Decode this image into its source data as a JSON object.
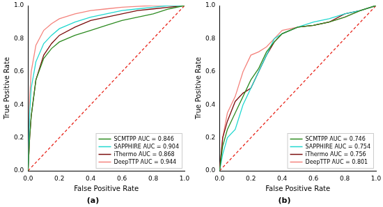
{
  "chart_data": [
    {
      "type": "line",
      "title": "(a)",
      "x_label": "False Positive Rate",
      "y_label": "True Positive Rate",
      "x": [
        0,
        0.01,
        0.02,
        0.05,
        0.1,
        0.15,
        0.2,
        0.3,
        0.4,
        0.5,
        0.6,
        0.7,
        0.8,
        0.9,
        1
      ],
      "series": [
        {
          "name": "SCMTPP AUC = 0.846",
          "color": "#2e8b22",
          "values": [
            0,
            0.2,
            0.33,
            0.55,
            0.68,
            0.74,
            0.78,
            0.82,
            0.85,
            0.88,
            0.91,
            0.93,
            0.95,
            0.98,
            1
          ]
        },
        {
          "name": "SAPPHIRE AUC = 0.904",
          "color": "#22d8d0",
          "values": [
            0,
            0.35,
            0.5,
            0.66,
            0.77,
            0.82,
            0.86,
            0.9,
            0.93,
            0.95,
            0.97,
            0.98,
            0.99,
            1,
            1
          ]
        },
        {
          "name": "iThermo AUC = 0.868",
          "color": "#7a0c0c",
          "values": [
            0,
            0.2,
            0.33,
            0.55,
            0.7,
            0.77,
            0.82,
            0.87,
            0.91,
            0.93,
            0.95,
            0.97,
            0.98,
            0.99,
            1
          ]
        },
        {
          "name": "DeepTTP AUC = 0.944",
          "color": "#f4837d",
          "values": [
            0,
            0.45,
            0.6,
            0.76,
            0.85,
            0.89,
            0.92,
            0.95,
            0.97,
            0.98,
            0.99,
            0.995,
            1,
            1,
            1
          ]
        },
        {
          "color": "#e8261c",
          "line_style": "dashed",
          "values": [
            0,
            0.01,
            0.02,
            0.05,
            0.1,
            0.15,
            0.2,
            0.3,
            0.4,
            0.5,
            0.6,
            0.7,
            0.8,
            0.9,
            1
          ]
        }
      ],
      "xlim": [
        0,
        1
      ],
      "ylim": [
        0,
        1
      ],
      "xticks": [
        {
          "value": 0,
          "label": "0.0"
        },
        0.2,
        0.4,
        0.6,
        0.8,
        {
          "value": 1,
          "label": "1.0"
        }
      ],
      "yticks": [
        {
          "value": 0,
          "label": "0.0"
        },
        0.2,
        0.4,
        0.6,
        0.8,
        {
          "value": 1,
          "label": "1.0"
        }
      ],
      "grid": false,
      "legend": "lower right"
    },
    {
      "type": "line",
      "title": "(b)",
      "x_label": "False Positive Rate",
      "y_label": "True Positive Rate",
      "x": [
        0,
        0.02,
        0.05,
        0.1,
        0.15,
        0.2,
        0.25,
        0.3,
        0.35,
        0.4,
        0.5,
        0.6,
        0.7,
        0.8,
        0.9,
        1
      ],
      "series": [
        {
          "name": "SCMTPP AUC = 0.746",
          "color": "#2e8b22",
          "values": [
            0,
            0.15,
            0.25,
            0.35,
            0.45,
            0.55,
            0.62,
            0.72,
            0.78,
            0.83,
            0.87,
            0.88,
            0.9,
            0.93,
            0.97,
            1
          ]
        },
        {
          "name": "SAPPHIRE AUC = 0.754",
          "color": "#22d8d0",
          "values": [
            0,
            0.1,
            0.2,
            0.25,
            0.4,
            0.5,
            0.6,
            0.7,
            0.8,
            0.83,
            0.87,
            0.9,
            0.92,
            0.95,
            0.97,
            1
          ]
        },
        {
          "name": "iThermo AUC = 0.756",
          "color": "#7a0c0c",
          "values": [
            0,
            0.2,
            0.3,
            0.42,
            0.47,
            0.5,
            0.6,
            0.7,
            0.78,
            0.83,
            0.87,
            0.88,
            0.9,
            0.95,
            0.97,
            1
          ]
        },
        {
          "name": "DeepTTP AUC = 0.801",
          "color": "#f4837d",
          "values": [
            0,
            0.2,
            0.35,
            0.45,
            0.6,
            0.7,
            0.72,
            0.75,
            0.8,
            0.85,
            0.87,
            0.88,
            0.9,
            0.93,
            0.97,
            1
          ]
        },
        {
          "color": "#e8261c",
          "line_style": "dashed",
          "values": [
            0,
            0.02,
            0.05,
            0.1,
            0.15,
            0.2,
            0.25,
            0.3,
            0.35,
            0.4,
            0.5,
            0.6,
            0.7,
            0.8,
            0.9,
            1
          ]
        }
      ],
      "xlim": [
        0,
        1
      ],
      "ylim": [
        0,
        1
      ],
      "xticks": [
        {
          "value": 0,
          "label": "0.0"
        },
        0.2,
        0.4,
        0.6,
        0.8,
        {
          "value": 1,
          "label": "1.0"
        }
      ],
      "yticks": [
        {
          "value": 0,
          "label": "0.0"
        },
        0.2,
        0.4,
        0.6,
        0.8,
        {
          "value": 1,
          "label": "1.0"
        }
      ],
      "grid": false,
      "legend": "lower right"
    }
  ]
}
